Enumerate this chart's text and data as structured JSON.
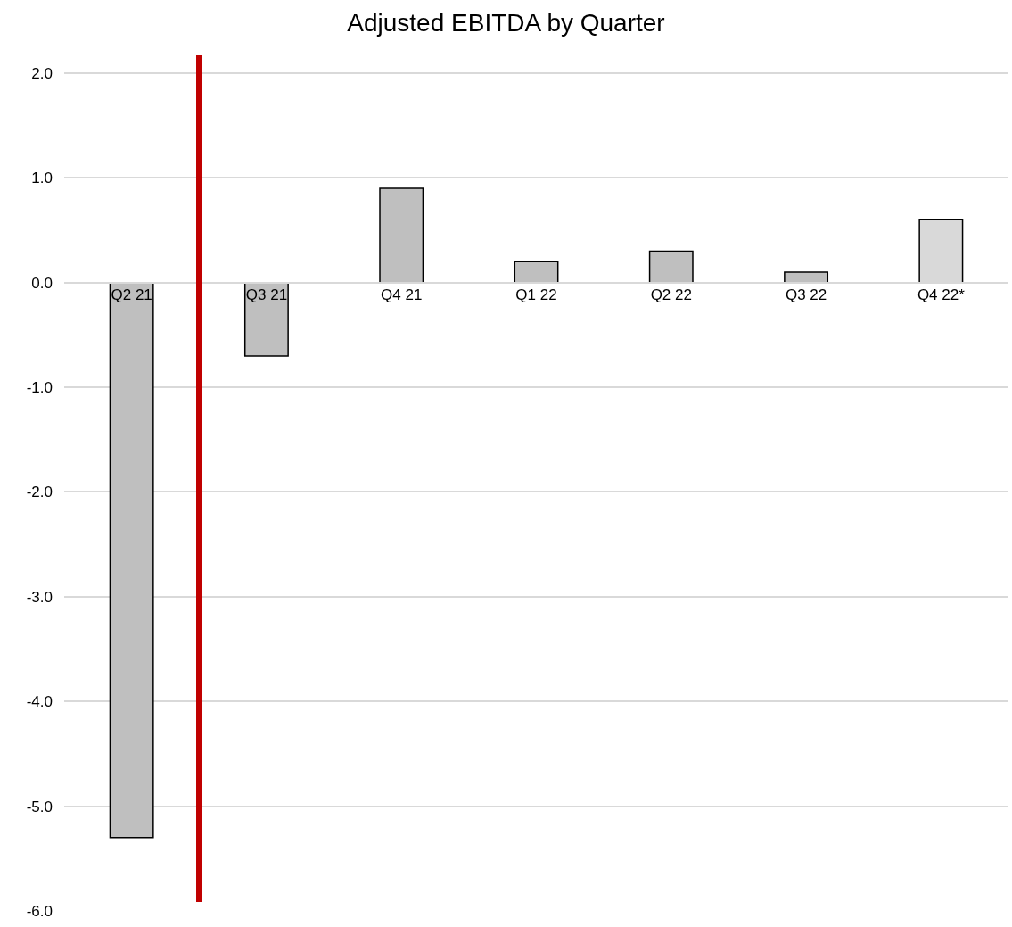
{
  "chart_data": {
    "type": "bar",
    "title": "Adjusted EBITDA by Quarter",
    "categories": [
      "Q2 21",
      "Q3 21",
      "Q4 21",
      "Q1 22",
      "Q2 22",
      "Q3 22",
      "Q4 22*"
    ],
    "values": [
      -5.3,
      -0.7,
      0.9,
      0.2,
      0.3,
      0.1,
      0.6
    ],
    "colors": [
      "#bfbfbf",
      "#bfbfbf",
      "#bfbfbf",
      "#bfbfbf",
      "#bfbfbf",
      "#bfbfbf",
      "#d9d9d9"
    ],
    "ylim": [
      -6.0,
      2.17
    ],
    "yticks": [
      {
        "value": -6,
        "label": "-6.0"
      },
      {
        "value": -5,
        "label": "-5.0"
      },
      {
        "value": -4,
        "label": "-4.0"
      },
      {
        "value": -3,
        "label": "-3.0"
      },
      {
        "value": -2,
        "label": "-2.0"
      },
      {
        "value": -1,
        "label": "-1.0"
      },
      {
        "value": 0,
        "label": "0.0"
      },
      {
        "value": 1,
        "label": "1.0"
      },
      {
        "value": 2,
        "label": "2.0"
      }
    ],
    "grid": "y"
  }
}
